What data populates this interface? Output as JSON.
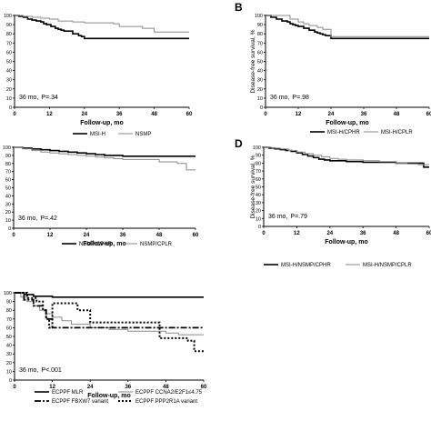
{
  "chart_data": [
    {
      "type": "line",
      "panel_letter": "",
      "ylabel": "",
      "xlabel": "Follow-up, mo",
      "xlim": [
        0,
        60
      ],
      "ylim": [
        0,
        100
      ],
      "xticks": [
        0,
        12,
        24,
        36,
        48,
        60
      ],
      "yticks": [
        0,
        10,
        20,
        30,
        40,
        50,
        60,
        70,
        80,
        90,
        100
      ],
      "annotation": {
        "mo": "36 mo,",
        "p": "P=.34"
      },
      "series": [
        {
          "name": "MSI-H",
          "style": "solid",
          "x": [
            0,
            1.5,
            3,
            4.5,
            6,
            7.5,
            9,
            10,
            11,
            12.5,
            14,
            15,
            16,
            17,
            19,
            20,
            21,
            22,
            23,
            24,
            60
          ],
          "y": [
            100,
            99,
            98,
            96,
            95,
            94,
            93,
            91,
            90,
            88,
            86,
            85,
            84,
            83,
            83,
            80,
            80,
            78,
            77,
            75,
            75
          ]
        },
        {
          "name": "NSMP",
          "style": "gray",
          "x": [
            0,
            3,
            6,
            9,
            12,
            15,
            20,
            24,
            34,
            36,
            44,
            48,
            60
          ],
          "y": [
            100,
            99,
            98,
            97,
            96,
            94,
            93,
            92,
            91,
            88,
            86,
            82,
            82
          ]
        }
      ]
    },
    {
      "type": "line",
      "panel_letter": "B",
      "ylabel": "Disease-free survival, %",
      "xlabel": "Follow-up, mo",
      "xlim": [
        0,
        60
      ],
      "ylim": [
        0,
        100
      ],
      "xticks": [
        0,
        12,
        24,
        36,
        48,
        60
      ],
      "yticks": [
        0,
        10,
        20,
        30,
        40,
        50,
        60,
        70,
        80,
        90,
        100
      ],
      "annotation": {
        "mo": "36 mo,",
        "p": "P=.98"
      },
      "series": [
        {
          "name": "MSI-H/CPHR",
          "style": "solid",
          "x": [
            0,
            2,
            4,
            6,
            8,
            9,
            10,
            11,
            12,
            14,
            16,
            18,
            19,
            20,
            21,
            22,
            24,
            60
          ],
          "y": [
            100,
            98,
            96,
            94,
            93,
            91,
            90,
            89,
            88,
            86,
            84,
            82,
            81,
            80,
            79,
            78,
            75,
            75
          ]
        },
        {
          "name": "MSI-H/CPLR",
          "style": "gray",
          "x": [
            0,
            6,
            9,
            12,
            14,
            16,
            19,
            21,
            24,
            60
          ],
          "y": [
            100,
            100,
            96,
            93,
            91,
            89,
            87,
            85,
            77,
            77
          ]
        }
      ]
    },
    {
      "type": "line",
      "panel_letter": "",
      "ylabel": "",
      "xlabel": "Follow-up, mo",
      "xlim": [
        0,
        60
      ],
      "ylim": [
        0,
        100
      ],
      "xticks": [
        0,
        12,
        24,
        36,
        48,
        60
      ],
      "yticks": [
        0,
        10,
        20,
        30,
        40,
        50,
        60,
        70,
        80,
        90,
        100
      ],
      "annotation": {
        "mo": "36 mo,",
        "p": "P=.42"
      },
      "series": [
        {
          "name": "NSMP/CPHR",
          "style": "solid",
          "x": [
            0,
            3,
            6,
            9,
            12,
            15,
            18,
            21,
            24,
            27,
            30,
            36,
            60
          ],
          "y": [
            100,
            99,
            98,
            97,
            96,
            95,
            94,
            93,
            92,
            91,
            90,
            89,
            89
          ]
        },
        {
          "name": "NSMP/CPLR",
          "style": "gray",
          "x": [
            0,
            3,
            6,
            9,
            12,
            15,
            18,
            21,
            24,
            27,
            30,
            33,
            36,
            42,
            48,
            54,
            57,
            60
          ],
          "y": [
            100,
            98,
            96,
            94,
            93,
            92,
            91,
            90,
            89,
            88,
            87,
            86,
            85,
            85,
            82,
            80,
            72,
            72
          ]
        }
      ]
    },
    {
      "type": "line",
      "panel_letter": "D",
      "ylabel": "Disease-free survival, %",
      "xlabel": "Follow-up, mo",
      "xlim": [
        0,
        60
      ],
      "ylim": [
        0,
        100
      ],
      "xticks": [
        0,
        12,
        24,
        36,
        48,
        60
      ],
      "yticks": [
        0,
        10,
        20,
        30,
        40,
        50,
        60,
        70,
        80,
        90,
        100
      ],
      "annotation": {
        "mo": "36 mo,",
        "p": "P=.79"
      },
      "series": [
        {
          "name": "MSI-H/NSMP/CPHR",
          "style": "solid",
          "x": [
            0,
            2,
            4,
            6,
            8,
            10,
            12,
            14,
            16,
            18,
            20,
            22,
            24,
            30,
            36,
            48,
            56,
            58,
            60
          ],
          "y": [
            100,
            99,
            98,
            97,
            96,
            95,
            93,
            91,
            89,
            87,
            85,
            84,
            83,
            82,
            81,
            80,
            80,
            75,
            75
          ]
        },
        {
          "name": "MSI-H/NSMP/CPLR",
          "style": "gray",
          "x": [
            0,
            3,
            6,
            9,
            12,
            15,
            18,
            21,
            24,
            27,
            30,
            36,
            42,
            48,
            52,
            56,
            60
          ],
          "y": [
            100,
            99,
            98,
            96,
            94,
            92,
            90,
            88,
            86,
            85,
            84,
            83,
            82,
            80,
            79,
            78,
            78
          ]
        }
      ]
    },
    {
      "type": "line",
      "panel_letter": "",
      "ylabel": "",
      "xlabel": "Follow-up, mo",
      "xlim": [
        0,
        60
      ],
      "ylim": [
        0,
        100
      ],
      "xticks": [
        0,
        12,
        24,
        36,
        48,
        60
      ],
      "yticks": [
        0,
        10,
        20,
        30,
        40,
        50,
        60,
        70,
        80,
        90,
        100
      ],
      "annotation": {
        "mo": "36 mo,",
        "p": "P<.001"
      },
      "series": [
        {
          "name": "ECPPF MLR",
          "style": "solid",
          "x": [
            0,
            3,
            6,
            12,
            60
          ],
          "y": [
            100,
            98,
            96,
            95,
            95
          ]
        },
        {
          "name": "ECPPF CCNA2/E2F1≤4.75",
          "style": "gray",
          "x": [
            0,
            2,
            4,
            6,
            8,
            10,
            12,
            15,
            18,
            24,
            30,
            36,
            48,
            52,
            60
          ],
          "y": [
            100,
            95,
            90,
            85,
            80,
            76,
            72,
            68,
            64,
            60,
            58,
            56,
            54,
            52,
            52
          ]
        },
        {
          "name": "ECPPF FBXW7 variant",
          "style": "dashdot",
          "x": [
            0,
            3,
            6,
            9,
            10,
            12,
            60
          ],
          "y": [
            100,
            92,
            85,
            80,
            70,
            60,
            60
          ]
        },
        {
          "name": "ECPPF PPP2R1A variant",
          "style": "dotted",
          "x": [
            0,
            4,
            7,
            9,
            10,
            11,
            12,
            18,
            20,
            24,
            45,
            46,
            54,
            55,
            57,
            60
          ],
          "y": [
            100,
            94,
            90,
            80,
            70,
            60,
            88,
            88,
            80,
            66,
            66,
            48,
            48,
            45,
            33,
            33
          ]
        }
      ]
    }
  ]
}
